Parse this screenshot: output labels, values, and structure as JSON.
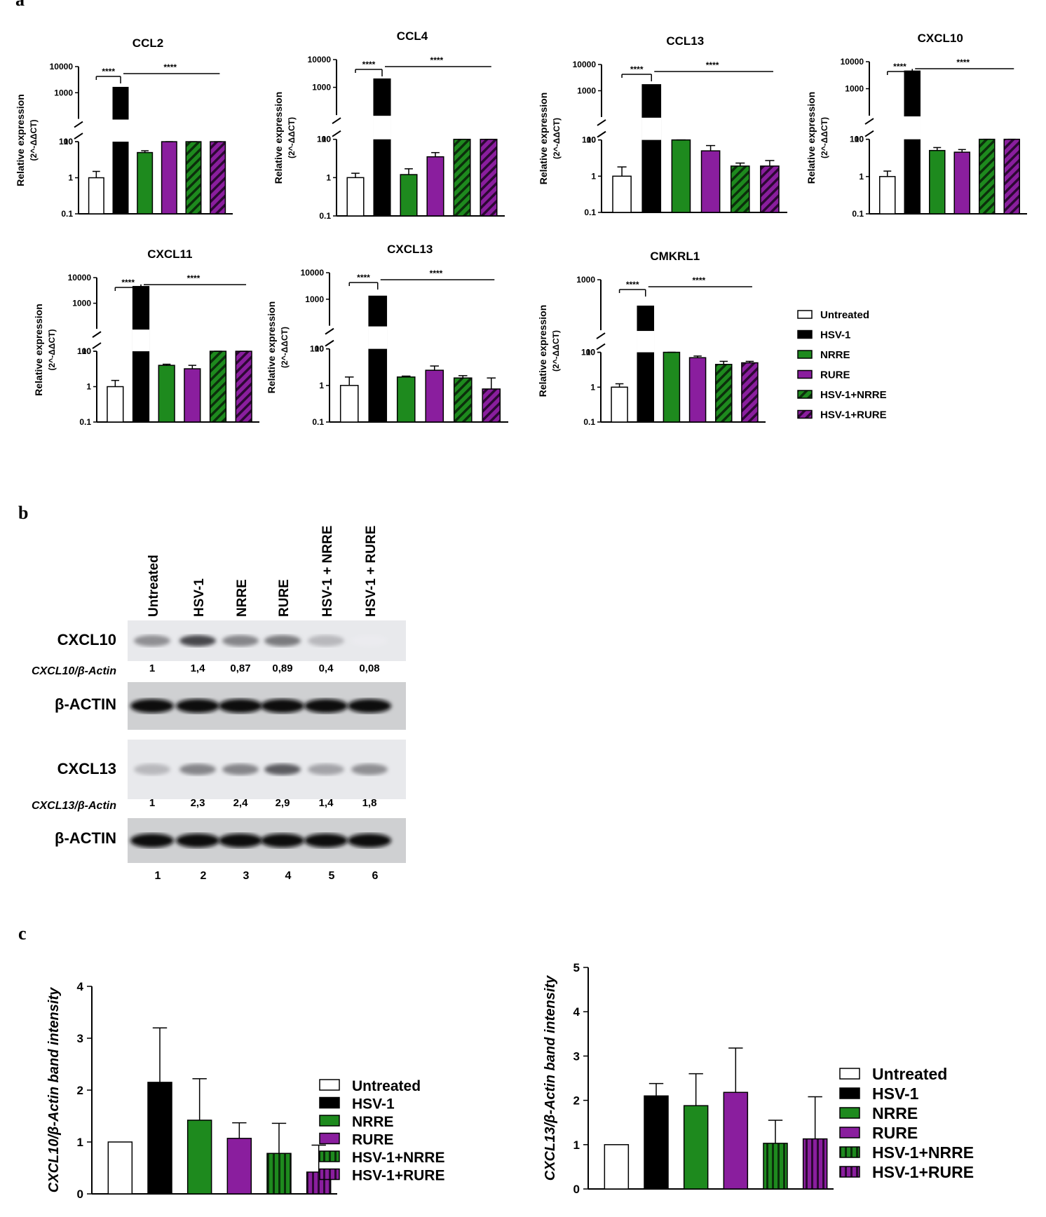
{
  "panel_labels": [
    "a",
    "b",
    "c"
  ],
  "colors": {
    "Untreated": "#ffffff",
    "HSV-1": "#000000",
    "NRRE": "#1e8a1e",
    "RURE": "#8a1e9e",
    "HSV-1+NRRE": "#1e8a1e",
    "HSV-1+RURE": "#8a1e9e"
  },
  "qpcr": {
    "ylabel_line1": "Relative expression",
    "ylabel_line2": "(2^-ΔΔCT)",
    "significance": "****",
    "legend": [
      "Untreated",
      "HSV-1",
      "NRRE",
      "RURE",
      "HSV-1+NRRE",
      "HSV-1+RURE"
    ]
  },
  "western": {
    "lane_labels": [
      "Untreated",
      "HSV-1",
      "NRRE",
      "RURE",
      "HSV-1 + NRRE",
      "HSV-1 + RURE"
    ],
    "lane_numbers": [
      "1",
      "2",
      "3",
      "4",
      "5",
      "6"
    ],
    "blots": [
      {
        "name": "CXCL10",
        "ratio_label": "CXCL10/β-Actin",
        "ratios": [
          "1",
          "1,4",
          "0,87",
          "0,89",
          "0,4",
          "0,08"
        ],
        "intensity": [
          0.55,
          0.9,
          0.6,
          0.65,
          0.35,
          0.1
        ]
      },
      {
        "name": "β-ACTIN",
        "ratio_label": "",
        "ratios": [],
        "intensity": [
          1,
          1,
          1,
          1,
          1,
          1
        ]
      },
      {
        "name": "CXCL13",
        "ratio_label": "CXCL13/β-Actin",
        "ratios": [
          "1",
          "2,3",
          "2,4",
          "2,9",
          "1,4",
          "1,8"
        ],
        "intensity": [
          0.35,
          0.6,
          0.6,
          0.8,
          0.45,
          0.55
        ]
      },
      {
        "name": "β-ACTIN",
        "ratio_label": "",
        "ratios": [],
        "intensity": [
          1,
          1,
          1,
          1,
          1,
          1
        ]
      }
    ]
  },
  "chart_data": [
    {
      "type": "bar",
      "title": "CCL2",
      "categories": [
        "Untreated",
        "HSV-1",
        "NRRE",
        "RURE",
        "HSV-1+NRRE",
        "HSV-1+RURE"
      ],
      "values": [
        1,
        1600,
        5,
        12,
        40,
        38
      ],
      "errors": [
        0.5,
        0,
        0.6,
        0.8,
        6,
        5
      ],
      "yscale": "log-broken",
      "ylim": [
        0.1,
        10000
      ],
      "yticks": [
        "0.1",
        "1",
        "10",
        "100",
        "1000",
        "10000"
      ],
      "ylabel": "Relative expression (2^-ΔΔCT)"
    },
    {
      "type": "bar",
      "title": "CCL4",
      "categories": [
        "Untreated",
        "HSV-1",
        "NRRE",
        "RURE",
        "HSV-1+NRRE",
        "HSV-1+RURE"
      ],
      "values": [
        1,
        2000,
        1.2,
        3.5,
        22,
        20
      ],
      "errors": [
        0.3,
        0,
        0.5,
        1,
        3,
        2
      ],
      "yscale": "log-broken",
      "ylim": [
        0.1,
        10000
      ],
      "yticks": [
        "0.1",
        "1",
        "10",
        "100",
        "1000",
        "10000"
      ],
      "ylabel": "Relative expression (2^-ΔΔCT)"
    },
    {
      "type": "bar",
      "title": "CCL13",
      "categories": [
        "Untreated",
        "HSV-1",
        "NRRE",
        "RURE",
        "HSV-1+NRRE",
        "HSV-1+RURE"
      ],
      "values": [
        1,
        1700,
        20,
        5,
        1.9,
        1.9
      ],
      "errors": [
        0.8,
        0,
        1.5,
        2,
        0.4,
        0.8
      ],
      "yscale": "log-broken",
      "ylim": [
        0.1,
        10000
      ],
      "yticks": [
        "0.1",
        "1",
        "10",
        "100",
        "1000",
        "10000"
      ],
      "ylabel": "Relative expression (2^-ΔΔCT)"
    },
    {
      "type": "bar",
      "title": "CXCL10",
      "categories": [
        "Untreated",
        "HSV-1",
        "NRRE",
        "RURE",
        "HSV-1+NRRE",
        "HSV-1+RURE"
      ],
      "values": [
        1,
        4500,
        5,
        4.5,
        35,
        45
      ],
      "errors": [
        0.4,
        0,
        1,
        0.8,
        5,
        4
      ],
      "yscale": "log-broken",
      "ylim": [
        0.1,
        10000
      ],
      "yticks": [
        "0.1",
        "1",
        "10",
        "100",
        "1000",
        "10000"
      ],
      "ylabel": "Relative expression (2^-ΔΔCT)"
    },
    {
      "type": "bar",
      "title": "CXCL11",
      "categories": [
        "Untreated",
        "HSV-1",
        "NRRE",
        "RURE",
        "HSV-1+NRRE",
        "HSV-1+RURE"
      ],
      "values": [
        1,
        4500,
        4,
        3.2,
        18,
        20
      ],
      "errors": [
        0.5,
        0,
        0.3,
        0.8,
        2,
        2
      ],
      "yscale": "log-broken",
      "ylim": [
        0.1,
        10000
      ],
      "yticks": [
        "0.1",
        "1",
        "10",
        "100",
        "1000",
        "10000"
      ],
      "ylabel": "Relative expression (2^-ΔΔCT)"
    },
    {
      "type": "bar",
      "title": "CXCL13",
      "categories": [
        "Untreated",
        "HSV-1",
        "NRRE",
        "RURE",
        "HSV-1+NRRE",
        "HSV-1+RURE"
      ],
      "values": [
        1,
        1300,
        1.7,
        2.6,
        1.6,
        0.8
      ],
      "errors": [
        0.7,
        0,
        0.1,
        0.8,
        0.25,
        0.8
      ],
      "yscale": "log-broken",
      "ylim": [
        0.1,
        10000
      ],
      "yticks": [
        "0.1",
        "1",
        "10",
        "100",
        "1000",
        "10000"
      ],
      "ylabel": "Relative expression (2^-ΔΔCT)"
    },
    {
      "type": "bar",
      "title": "CMKRL1",
      "categories": [
        "Untreated",
        "HSV-1",
        "NRRE",
        "RURE",
        "HSV-1+NRRE",
        "HSV-1+RURE"
      ],
      "values": [
        1,
        300,
        13,
        7,
        4.5,
        5
      ],
      "errors": [
        0.25,
        0,
        1,
        0.8,
        1,
        0.5
      ],
      "yscale": "log-broken",
      "ylim": [
        0.1,
        1000
      ],
      "yticks": [
        "0.1",
        "1",
        "10",
        "100",
        "1000"
      ],
      "ylabel": "Relative expression (2^-ΔΔCT)"
    },
    {
      "type": "bar",
      "categories": [
        "Untreated",
        "HSV-1",
        "NRRE",
        "RURE",
        "HSV-1+NRRE",
        "HSV-1+RURE"
      ],
      "values": [
        1,
        2.15,
        1.42,
        1.07,
        0.78,
        0.42
      ],
      "errors": [
        0,
        1.05,
        0.8,
        0.3,
        0.58,
        0.52
      ],
      "ylim": [
        0,
        4
      ],
      "yticks": [
        "0",
        "1",
        "2",
        "3",
        "4"
      ],
      "ylabel": "CXCL10/β-Actin band intensity",
      "legend": [
        "Untreated",
        "HSV-1",
        "NRRE",
        "RURE",
        "HSV-1+NRRE",
        "HSV-1+RURE"
      ]
    },
    {
      "type": "bar",
      "categories": [
        "Untreated",
        "HSV-1",
        "NRRE",
        "RURE",
        "HSV-1+NRRE",
        "HSV-1+RURE"
      ],
      "values": [
        1,
        2.1,
        1.88,
        2.18,
        1.03,
        1.13
      ],
      "errors": [
        0,
        0.28,
        0.72,
        1.0,
        0.52,
        0.95
      ],
      "ylim": [
        0,
        5
      ],
      "yticks": [
        "0",
        "1",
        "2",
        "3",
        "4",
        "5"
      ],
      "ylabel": "CXCL13/β-Actin band intensity",
      "legend": [
        "Untreated",
        "HSV-1",
        "NRRE",
        "RURE",
        "HSV-1+NRRE",
        "HSV-1+RURE"
      ]
    }
  ]
}
